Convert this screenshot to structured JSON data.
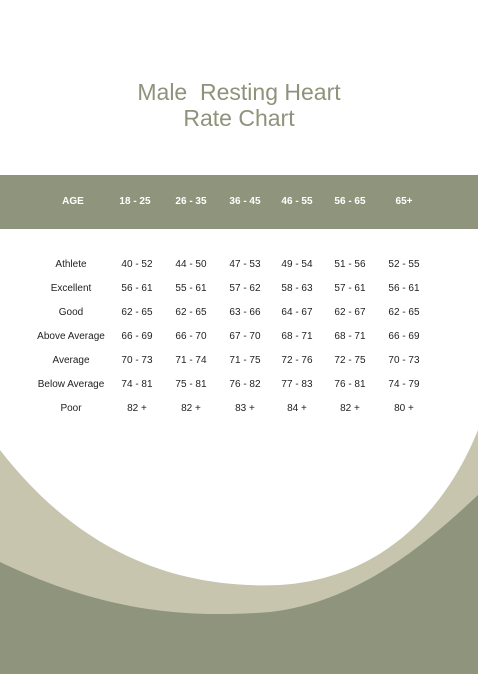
{
  "title": {
    "line1": "Male  Resting Heart",
    "line2": "Rate Chart"
  },
  "table": {
    "headers": [
      "AGE",
      "18 - 25",
      "26 - 35",
      "36 - 45",
      "46 - 55",
      "56 - 65",
      "65+"
    ],
    "rows": [
      [
        "Athlete",
        "40 - 52",
        "44 - 50",
        "47 - 53",
        "49 - 54",
        "51 - 56",
        "52 - 55"
      ],
      [
        "Excellent",
        "56 - 61",
        "55 - 61",
        "57 - 62",
        "58 - 63",
        "57 - 61",
        "56 - 61"
      ],
      [
        "Good",
        "62 - 65",
        "62 - 65",
        "63 - 66",
        "64 - 67",
        "62 - 67",
        "62 - 65"
      ],
      [
        "Above Average",
        "66 - 69",
        "66 - 70",
        "67 - 70",
        "68 - 71",
        "68 - 71",
        "66 - 69"
      ],
      [
        "Average",
        "70 - 73",
        "71 - 74",
        "71 - 75",
        "72 - 76",
        "72 - 75",
        "70 - 73"
      ],
      [
        "Below Average",
        "74 - 81",
        "75 - 81",
        "76 - 82",
        "77 - 83",
        "76 - 81",
        "74 - 79"
      ],
      [
        "Poor",
        "82 +",
        "82 +",
        "83 +",
        "84 +",
        "82 +",
        "80 +"
      ]
    ]
  },
  "colors": {
    "title": "#8e937b",
    "header_band": "#8e957c",
    "wave_light": "#c7c5ae",
    "wave_dark": "#8e957c"
  }
}
